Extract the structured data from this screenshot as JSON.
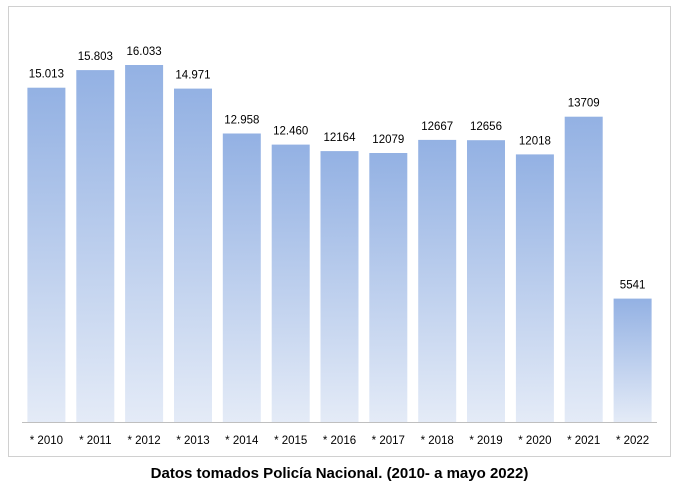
{
  "chart_data": {
    "type": "bar",
    "categories": [
      "* 2010",
      "* 2011",
      "* 2012",
      "* 2013",
      "* 2014",
      "* 2015",
      "* 2016",
      "* 2017",
      "* 2018",
      "* 2019",
      "* 2020",
      "* 2021",
      "* 2022"
    ],
    "values": [
      15013,
      15803,
      16033,
      14971,
      12958,
      12460,
      12164,
      12079,
      12667,
      12656,
      12018,
      13709,
      5541
    ],
    "data_labels": [
      "15.013",
      "15.803",
      "16.033",
      "14.971",
      "12.958",
      "12.460",
      "12164",
      "12079",
      "12667",
      "12656",
      "12018",
      "13709",
      "5541"
    ],
    "title": "",
    "xlabel": "",
    "ylabel": "",
    "ylim": [
      0,
      16033
    ],
    "grid": false,
    "legend": "none",
    "bar_color_top": "#93b1e3",
    "bar_color_bottom": "#e4ebf7",
    "axis_color": "#bfbfbf"
  },
  "caption": "Datos tomados Policía Nacional. (2010- a mayo 2022)"
}
